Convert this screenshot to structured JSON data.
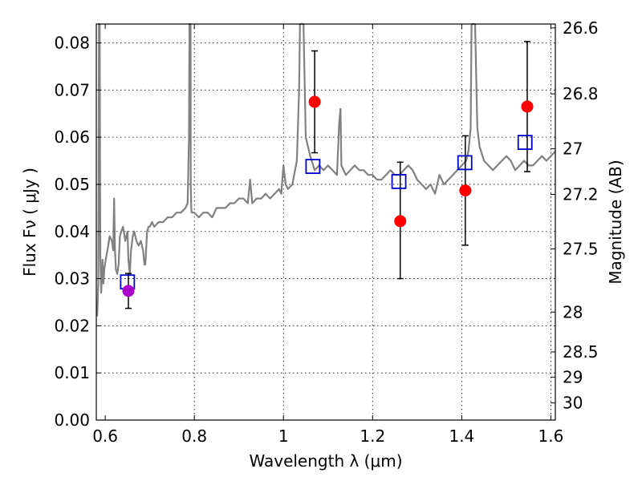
{
  "chart_data": {
    "type": "scatter",
    "title": "",
    "xlabel": "Wavelength  λ (μm)",
    "ylabel": "Flux  Fν  ( μJy )",
    "y2label": "Magnitude (AB)",
    "xlim": [
      0.58,
      1.61
    ],
    "ylim": [
      0.0,
      0.084
    ],
    "grid": true,
    "x_ticks": [
      0.6,
      0.8,
      1.0,
      1.2,
      1.4,
      1.6
    ],
    "x_tick_labels": [
      "0.6",
      "0.8",
      "1",
      "1.2",
      "1.4",
      "1.6"
    ],
    "y_ticks": [
      0.0,
      0.01,
      0.02,
      0.03,
      0.04,
      0.05,
      0.06,
      0.07,
      0.08
    ],
    "y_tick_labels": [
      "0.00",
      "0.01",
      "0.02",
      "0.03",
      "0.04",
      "0.05",
      "0.06",
      "0.07",
      "0.08"
    ],
    "y2_tick_labels": [
      "26.6",
      "26.8",
      "27",
      "27.2",
      "27.5",
      "28",
      "28.5",
      "29",
      "30"
    ],
    "colors": {
      "spectrum": "#808080",
      "observed": "#ff0000",
      "observed_alt": "#aa00cc",
      "model": "#0000cc",
      "errorbar": "#000000"
    },
    "spectrum": {
      "x": [
        0.582,
        0.5845,
        0.586,
        0.5875,
        0.589,
        0.591,
        0.593,
        0.594,
        0.596,
        0.598,
        0.601,
        0.605,
        0.61,
        0.615,
        0.618,
        0.62,
        0.622,
        0.624,
        0.627,
        0.63,
        0.633,
        0.636,
        0.64,
        0.645,
        0.65,
        0.652,
        0.655,
        0.658,
        0.662,
        0.665,
        0.67,
        0.675,
        0.68,
        0.685,
        0.688,
        0.69,
        0.694,
        0.697,
        0.7,
        0.705,
        0.71,
        0.72,
        0.73,
        0.74,
        0.75,
        0.76,
        0.77,
        0.78,
        0.785,
        0.788,
        0.789,
        0.79,
        0.791,
        0.7915,
        0.792,
        0.793,
        0.794,
        0.8,
        0.81,
        0.82,
        0.83,
        0.84,
        0.85,
        0.86,
        0.87,
        0.88,
        0.89,
        0.9,
        0.91,
        0.92,
        0.925,
        0.93,
        0.94,
        0.95,
        0.96,
        0.97,
        0.98,
        0.99,
        0.995,
        1.0,
        1.005,
        1.01,
        1.02,
        1.03,
        1.035,
        1.037,
        1.04,
        1.045,
        1.05,
        1.06,
        1.07,
        1.08,
        1.09,
        1.1,
        1.11,
        1.12,
        1.125,
        1.128,
        1.13,
        1.135,
        1.14,
        1.15,
        1.16,
        1.17,
        1.18,
        1.19,
        1.2,
        1.21,
        1.22,
        1.23,
        1.24,
        1.25,
        1.26,
        1.27,
        1.28,
        1.29,
        1.3,
        1.31,
        1.32,
        1.33,
        1.34,
        1.35,
        1.36,
        1.37,
        1.38,
        1.39,
        1.4,
        1.41,
        1.415,
        1.42,
        1.422,
        1.426,
        1.43,
        1.435,
        1.44,
        1.45,
        1.46,
        1.47,
        1.48,
        1.49,
        1.5,
        1.51,
        1.52,
        1.53,
        1.54,
        1.55,
        1.56,
        1.57,
        1.58,
        1.59,
        1.6,
        1.61
      ],
      "y": [
        0.022,
        0.029,
        0.084,
        0.084,
        0.035,
        0.027,
        0.031,
        0.034,
        0.029,
        0.032,
        0.034,
        0.036,
        0.039,
        0.038,
        0.036,
        0.047,
        0.036,
        0.032,
        0.031,
        0.033,
        0.039,
        0.04,
        0.041,
        0.038,
        0.04,
        0.034,
        0.031,
        0.036,
        0.039,
        0.04,
        0.038,
        0.037,
        0.038,
        0.036,
        0.033,
        0.033,
        0.04,
        0.041,
        0.041,
        0.042,
        0.041,
        0.042,
        0.042,
        0.043,
        0.043,
        0.044,
        0.044,
        0.045,
        0.046,
        0.06,
        0.084,
        0.084,
        0.084,
        0.084,
        0.05,
        0.045,
        0.044,
        0.044,
        0.043,
        0.044,
        0.044,
        0.043,
        0.045,
        0.045,
        0.045,
        0.046,
        0.046,
        0.047,
        0.047,
        0.046,
        0.051,
        0.046,
        0.047,
        0.047,
        0.048,
        0.047,
        0.048,
        0.049,
        0.048,
        0.054,
        0.05,
        0.049,
        0.05,
        0.055,
        0.07,
        0.084,
        0.084,
        0.084,
        0.06,
        0.056,
        0.053,
        0.054,
        0.053,
        0.054,
        0.053,
        0.052,
        0.063,
        0.066,
        0.054,
        0.053,
        0.052,
        0.053,
        0.054,
        0.053,
        0.053,
        0.052,
        0.052,
        0.051,
        0.051,
        0.052,
        0.053,
        0.052,
        0.052,
        0.053,
        0.054,
        0.053,
        0.051,
        0.05,
        0.049,
        0.05,
        0.048,
        0.052,
        0.05,
        0.051,
        0.052,
        0.053,
        0.054,
        0.055,
        0.057,
        0.062,
        0.084,
        0.084,
        0.084,
        0.062,
        0.058,
        0.055,
        0.054,
        0.053,
        0.054,
        0.055,
        0.056,
        0.055,
        0.053,
        0.054,
        0.055,
        0.054,
        0.054,
        0.055,
        0.056,
        0.055,
        0.056,
        0.057
      ]
    },
    "observed": {
      "x": [
        0.652,
        1.07,
        1.262,
        1.408,
        1.547
      ],
      "y": [
        0.0274,
        0.0675,
        0.0422,
        0.0487,
        0.0665
      ],
      "yerr_low": [
        0.0037,
        0.0108,
        0.0122,
        0.0116,
        0.0138
      ],
      "yerr_high": [
        0.0037,
        0.0108,
        0.0125,
        0.0116,
        0.0138
      ],
      "colors": [
        "observed_alt",
        "observed",
        "observed",
        "observed",
        "observed"
      ]
    },
    "model": {
      "x": [
        0.65,
        1.066,
        1.259,
        1.407,
        1.542
      ],
      "y": [
        0.0293,
        0.0538,
        0.0506,
        0.0546,
        0.0589
      ]
    }
  }
}
